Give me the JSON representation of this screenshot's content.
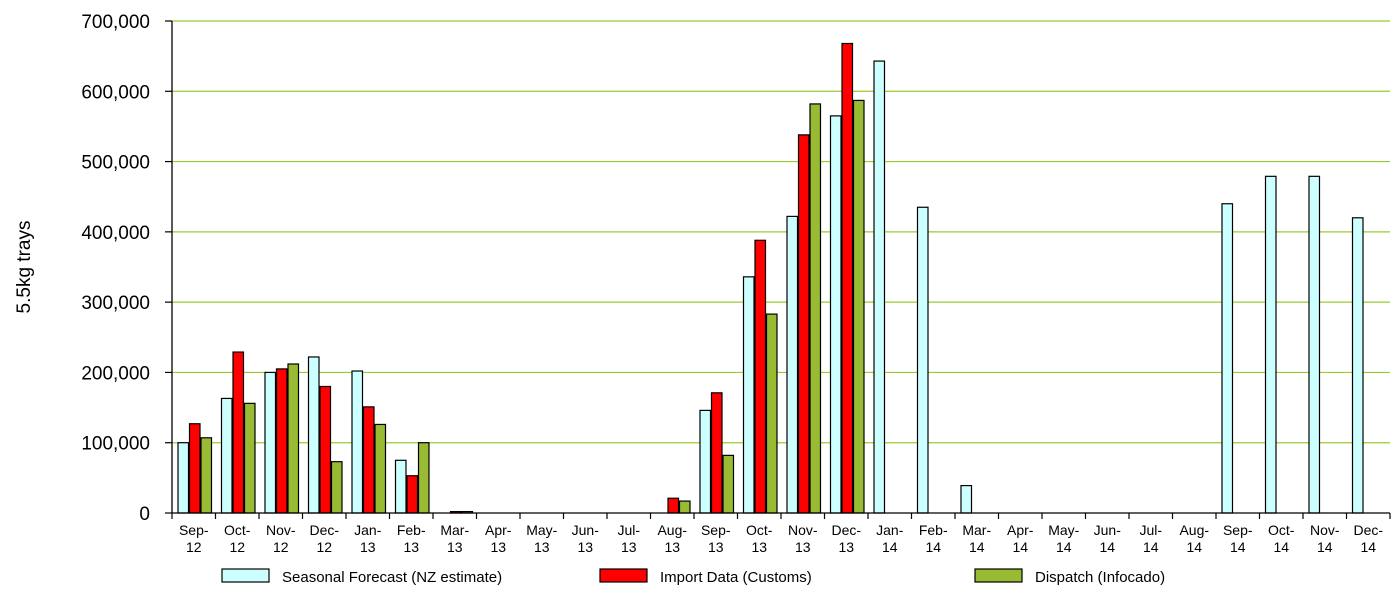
{
  "chart_data": {
    "type": "bar",
    "ylabel": "5.5kg trays",
    "ylim": [
      0,
      700000
    ],
    "yticks": [
      "0",
      "100,000",
      "200,000",
      "300,000",
      "400,000",
      "500,000",
      "600,000",
      "700,000"
    ],
    "grid": true,
    "legend_position": "bottom",
    "categories": [
      [
        "Sep-",
        "12"
      ],
      [
        "Oct-",
        "12"
      ],
      [
        "Nov-",
        "12"
      ],
      [
        "Dec-",
        "12"
      ],
      [
        "Jan-",
        "13"
      ],
      [
        "Feb-",
        "13"
      ],
      [
        "Mar-",
        "13"
      ],
      [
        "Apr-",
        "13"
      ],
      [
        "May-",
        "13"
      ],
      [
        "Jun-",
        "13"
      ],
      [
        "Jul-",
        "13"
      ],
      [
        "Aug-",
        "13"
      ],
      [
        "Sep-",
        "13"
      ],
      [
        "Oct-",
        "13"
      ],
      [
        "Nov-",
        "13"
      ],
      [
        "Dec-",
        "13"
      ],
      [
        "Jan-",
        "14"
      ],
      [
        "Feb-",
        "14"
      ],
      [
        "Mar-",
        "14"
      ],
      [
        "Apr-",
        "14"
      ],
      [
        "May-",
        "14"
      ],
      [
        "Jun-",
        "14"
      ],
      [
        "Jul-",
        "14"
      ],
      [
        "Aug-",
        "14"
      ],
      [
        "Sep-",
        "14"
      ],
      [
        "Oct-",
        "14"
      ],
      [
        "Nov-",
        "14"
      ],
      [
        "Dec-",
        "14"
      ]
    ],
    "series": [
      {
        "name": "Seasonal Forecast (NZ estimate)",
        "color": "#ccffff",
        "values": [
          100000,
          163000,
          200000,
          222000,
          202000,
          75000,
          0,
          0,
          0,
          0,
          0,
          0,
          146000,
          336000,
          422000,
          565000,
          643000,
          435000,
          39000,
          0,
          0,
          0,
          0,
          0,
          440000,
          479000,
          479000,
          420000
        ]
      },
      {
        "name": "Import Data (Customs)",
        "color": "#ff0000",
        "values": [
          127000,
          229000,
          205000,
          180000,
          151000,
          53000,
          2000,
          0,
          0,
          0,
          0,
          21000,
          171000,
          388000,
          538000,
          668000,
          0,
          0,
          0,
          0,
          0,
          0,
          0,
          0,
          0,
          0,
          0,
          0
        ]
      },
      {
        "name": "Dispatch (Infocado)",
        "color": "#99bb33",
        "values": [
          107000,
          156000,
          212000,
          73000,
          126000,
          100000,
          2000,
          0,
          0,
          0,
          0,
          17000,
          82000,
          283000,
          582000,
          587000,
          0,
          0,
          0,
          0,
          0,
          0,
          0,
          0,
          0,
          0,
          0,
          0
        ]
      }
    ]
  },
  "colors": {
    "gridline": "#99cc33",
    "axis": "#000000",
    "bar_outline": "#000000"
  }
}
